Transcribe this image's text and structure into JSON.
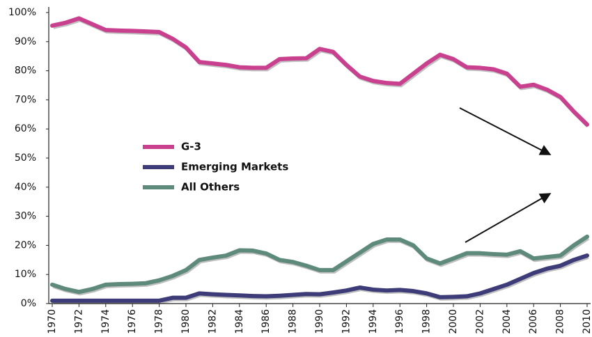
{
  "chart_data": {
    "type": "line",
    "x": [
      1970,
      1971,
      1972,
      1973,
      1974,
      1975,
      1976,
      1977,
      1978,
      1979,
      1980,
      1981,
      1982,
      1983,
      1984,
      1985,
      1986,
      1987,
      1988,
      1989,
      1990,
      1991,
      1992,
      1993,
      1994,
      1995,
      1996,
      1997,
      1998,
      1999,
      2000,
      2001,
      2002,
      2003,
      2004,
      2005,
      2006,
      2007,
      2008,
      2009,
      2010
    ],
    "xlim": [
      1970,
      2010
    ],
    "xticks": [
      1970,
      1972,
      1974,
      1976,
      1978,
      1980,
      1982,
      1984,
      1986,
      1988,
      1990,
      1992,
      1994,
      1996,
      1998,
      2000,
      2002,
      2004,
      2006,
      2008,
      2010
    ],
    "ylim": [
      0,
      100
    ],
    "yticks": [
      {
        "value": 0,
        "label": "0%"
      },
      {
        "value": 10,
        "label": "10%"
      },
      {
        "value": 20,
        "label": "20%"
      },
      {
        "value": 30,
        "label": "30%"
      },
      {
        "value": 40,
        "label": "40%"
      },
      {
        "value": 50,
        "label": "50%"
      },
      {
        "value": 60,
        "label": "60%"
      },
      {
        "value": 70,
        "label": "70%"
      },
      {
        "value": 80,
        "label": "80%"
      },
      {
        "value": 90,
        "label": "90%"
      },
      {
        "value": 100,
        "label": "100%"
      }
    ],
    "legend": "center-left",
    "series": [
      {
        "name": "G-3",
        "color": "#c9408f",
        "values": [
          95.5,
          96.5,
          98,
          96,
          94,
          93.8,
          93.7,
          93.5,
          93.3,
          91,
          88,
          83,
          82.5,
          82,
          81.2,
          81,
          81,
          84,
          84.2,
          84.3,
          87.5,
          86.5,
          82,
          78,
          76.5,
          75.8,
          75.5,
          79,
          82.5,
          85.5,
          84,
          81.2,
          81,
          80.5,
          79,
          74.5,
          75.2,
          73.5,
          71,
          66,
          61.5
        ]
      },
      {
        "name": "Emerging Markets",
        "color": "#3d3b78",
        "values": [
          1,
          1,
          1,
          1,
          1,
          1,
          1,
          1,
          1,
          2,
          2,
          3.5,
          3.2,
          3,
          2.8,
          2.6,
          2.5,
          2.7,
          3,
          3.3,
          3.2,
          3.8,
          4.5,
          5.5,
          4.8,
          4.5,
          4.7,
          4.3,
          3.5,
          2.2,
          2.3,
          2.5,
          3.5,
          5,
          6.5,
          8.5,
          10.5,
          12,
          13,
          15,
          16.5
        ]
      },
      {
        "name": "All Others",
        "color": "#5e8a7c",
        "values": [
          6.5,
          5,
          4,
          5,
          6.5,
          6.7,
          6.8,
          7,
          8,
          9.5,
          11.5,
          15,
          15.8,
          16.5,
          18.3,
          18.2,
          17.2,
          15,
          14.3,
          13,
          11.5,
          11.5,
          14.5,
          17.5,
          20.5,
          22,
          22,
          20,
          15.5,
          13.8,
          15.5,
          17.3,
          17.3,
          17,
          16.8,
          18,
          15.5,
          16,
          16.5,
          20,
          23
        ]
      }
    ]
  }
}
